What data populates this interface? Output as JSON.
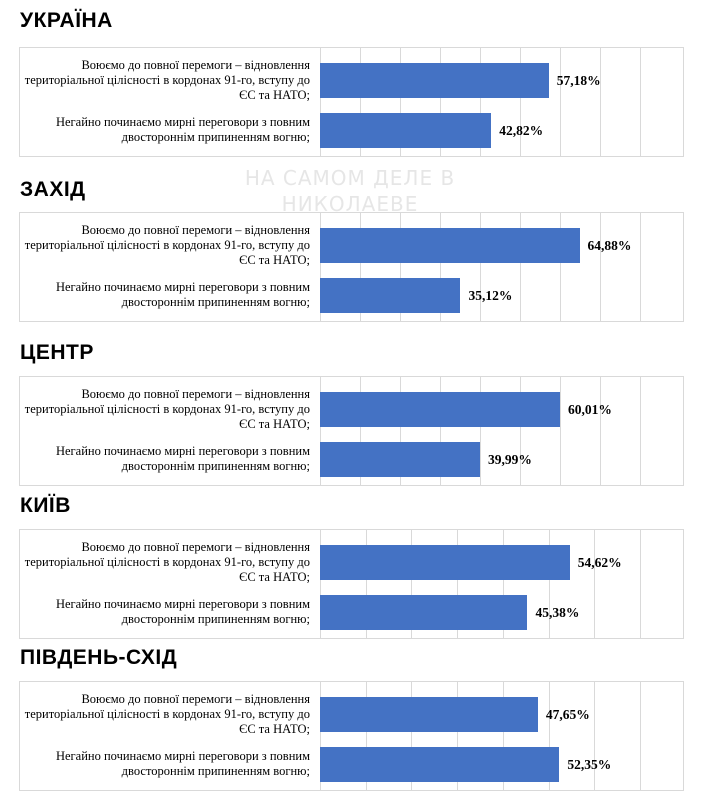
{
  "watermark": "НА САМОМ ДЕЛЕ В НИКОЛАЕВЕ",
  "colors": {
    "bar": "#4472c4",
    "grid": "#d9d9d9"
  },
  "chart_data": [
    {
      "type": "bar",
      "orientation": "horizontal",
      "title": "УКРАЇНА",
      "categories": [
        "Воюємо до повної перемоги – відновлення територіальної цілісності в кордонах 91-го, вступу до ЄС та НАТО;",
        "Негайно починаємо мирні переговори з повним двостороннім припиненням вогню;"
      ],
      "values": [
        57.18,
        42.82
      ],
      "value_labels": [
        "57,18%",
        "42,82%"
      ],
      "xlim": [
        0,
        80
      ],
      "grid": true,
      "legend": "none"
    },
    {
      "type": "bar",
      "orientation": "horizontal",
      "title": "ЗАХІД",
      "categories": [
        "Воюємо до повної перемоги – відновлення територіальної цілісності в кордонах 91-го, вступу до ЄС та НАТО;",
        "Негайно починаємо мирні переговори з повним двостороннім припиненням вогню;"
      ],
      "values": [
        64.88,
        35.12
      ],
      "value_labels": [
        "64,88%",
        "35,12%"
      ],
      "xlim": [
        0,
        80
      ],
      "grid": true,
      "legend": "none"
    },
    {
      "type": "bar",
      "orientation": "horizontal",
      "title": "ЦЕНТР",
      "categories": [
        "Воюємо до повної перемоги – відновлення територіальної цілісності в кордонах 91-го, вступу до ЄС та НАТО;",
        "Негайно починаємо мирні переговори з повним двостороннім припиненням вогню;"
      ],
      "values": [
        60.01,
        39.99
      ],
      "value_labels": [
        "60,01%",
        "39,99%"
      ],
      "xlim": [
        0,
        80
      ],
      "grid": true,
      "legend": "none"
    },
    {
      "type": "bar",
      "orientation": "horizontal",
      "title": "КИЇВ",
      "categories": [
        "Воюємо до повної перемоги – відновлення територіальної цілісності в кордонах 91-го, вступу до ЄС та НАТО;",
        "Негайно починаємо мирні переговори з повним двостороннім припиненням вогню;"
      ],
      "values": [
        54.62,
        45.38
      ],
      "value_labels": [
        "54,62%",
        "45,38%"
      ],
      "xlim": [
        0,
        70
      ],
      "grid": true,
      "legend": "none"
    },
    {
      "type": "bar",
      "orientation": "horizontal",
      "title": "ПІВДЕНЬ-СХІД",
      "categories": [
        "Воюємо до повної перемоги – відновлення територіальної цілісності в кордонах 91-го, вступу до ЄС та НАТО;",
        "Негайно починаємо мирні переговори з повним двостороннім припиненням вогню;"
      ],
      "values": [
        47.65,
        52.35
      ],
      "value_labels": [
        "47,65%",
        "52,35%"
      ],
      "xlim": [
        0,
        70
      ],
      "grid": true,
      "legend": "none"
    }
  ]
}
